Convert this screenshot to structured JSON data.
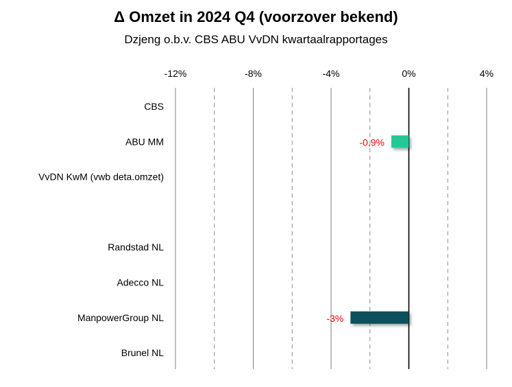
{
  "chart_data": {
    "type": "bar",
    "orientation": "horizontal",
    "title": "Δ Omzet in 2024 Q4 (voorzover bekend)",
    "subtitle": "Dzjeng o.b.v. CBS ABU VvDN kwartaalrapportages",
    "xlim": [
      -12,
      4
    ],
    "xticks": [
      -12,
      -10,
      -8,
      -6,
      -4,
      -2,
      0,
      2,
      4
    ],
    "xtick_labels": [
      "-12%",
      "",
      "-8%",
      "",
      "-4%",
      "",
      "0%",
      "",
      "4%"
    ],
    "categories": [
      "CBS",
      "ABU MM",
      "VvDN KwM (vwb deta.omzet)",
      "",
      "Randstad NL",
      "Adecco NL",
      "ManpowerGroup NL",
      "Brunel NL"
    ],
    "values": [
      null,
      -0.9,
      null,
      null,
      null,
      null,
      -3.0,
      null
    ],
    "data_labels": [
      "",
      "-0,9%",
      "",
      "",
      "",
      "",
      "-3%",
      ""
    ],
    "bar_colors": [
      "#20c997",
      "#20c997",
      "#20c997",
      "#20c997",
      "#0b4f5c",
      "#0b4f5c",
      "#0b4f5c",
      "#0b4f5c"
    ],
    "label_color": "#ff0000",
    "grid": true
  }
}
